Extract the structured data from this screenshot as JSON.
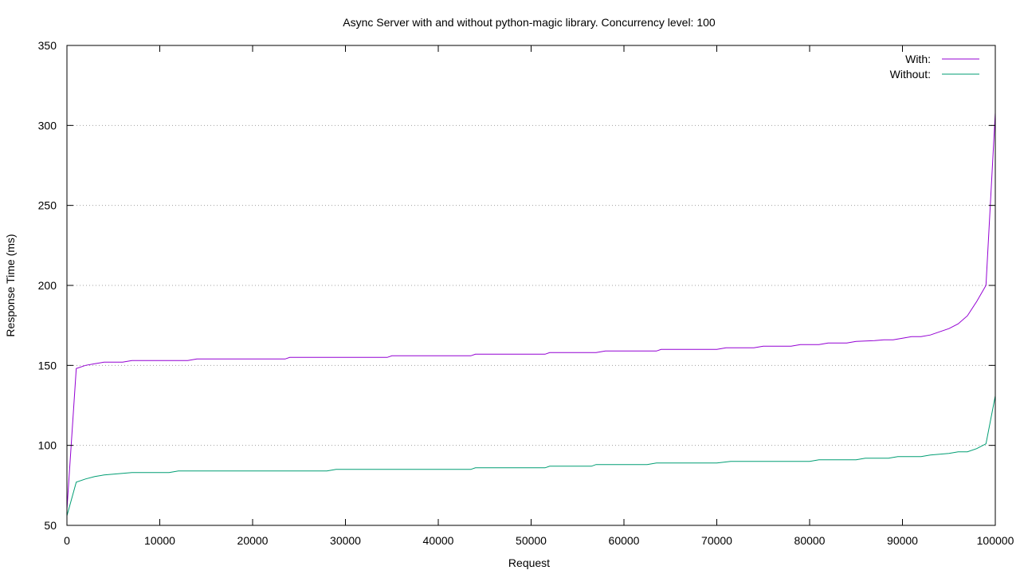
{
  "chart_data": {
    "type": "line",
    "title": "Async Server with and without python-magic library. Concurrency level: 100",
    "xlabel": "Request",
    "ylabel": "Response Time (ms)",
    "xlim": [
      0,
      100000
    ],
    "ylim": [
      50,
      350
    ],
    "xticks": [
      0,
      10000,
      20000,
      30000,
      40000,
      50000,
      60000,
      70000,
      80000,
      90000,
      100000
    ],
    "yticks": [
      50,
      100,
      150,
      200,
      250,
      300,
      350
    ],
    "grid": "horizontal-dotted",
    "legend_position": "top-right",
    "series": [
      {
        "name": "With:",
        "color": "#9400d3",
        "points": [
          [
            0,
            60
          ],
          [
            1000,
            148
          ],
          [
            2000,
            150
          ],
          [
            3000,
            151
          ],
          [
            4000,
            152
          ],
          [
            5000,
            152
          ],
          [
            6000,
            152
          ],
          [
            7000,
            153
          ],
          [
            10000,
            153
          ],
          [
            13000,
            153
          ],
          [
            14000,
            154
          ],
          [
            20000,
            154
          ],
          [
            23500,
            154
          ],
          [
            24000,
            155
          ],
          [
            30000,
            155
          ],
          [
            34500,
            155
          ],
          [
            35000,
            156
          ],
          [
            40000,
            156
          ],
          [
            43500,
            156
          ],
          [
            44000,
            157
          ],
          [
            50000,
            157
          ],
          [
            51500,
            157
          ],
          [
            52000,
            158
          ],
          [
            57000,
            158
          ],
          [
            58000,
            159
          ],
          [
            63500,
            159
          ],
          [
            64000,
            160
          ],
          [
            70000,
            160
          ],
          [
            71000,
            161
          ],
          [
            74000,
            161
          ],
          [
            75000,
            162
          ],
          [
            78000,
            162
          ],
          [
            79000,
            163
          ],
          [
            81000,
            163
          ],
          [
            82000,
            164
          ],
          [
            84000,
            164
          ],
          [
            85000,
            165
          ],
          [
            87000,
            165.5
          ],
          [
            88000,
            166
          ],
          [
            89000,
            166
          ],
          [
            90000,
            167
          ],
          [
            91000,
            168
          ],
          [
            92000,
            168
          ],
          [
            93000,
            169
          ],
          [
            94000,
            171
          ],
          [
            95000,
            173
          ],
          [
            96000,
            176
          ],
          [
            97000,
            181
          ],
          [
            98000,
            190
          ],
          [
            99000,
            200
          ],
          [
            100000,
            308
          ]
        ]
      },
      {
        "name": "Without:",
        "color": "#009e73",
        "points": [
          [
            0,
            56
          ],
          [
            1000,
            77
          ],
          [
            2000,
            79
          ],
          [
            3000,
            80.5
          ],
          [
            4000,
            81.5
          ],
          [
            5000,
            82
          ],
          [
            6000,
            82.5
          ],
          [
            7000,
            83
          ],
          [
            10000,
            83
          ],
          [
            11000,
            83
          ],
          [
            12000,
            84
          ],
          [
            20000,
            84
          ],
          [
            28000,
            84
          ],
          [
            29000,
            85
          ],
          [
            35000,
            85
          ],
          [
            40000,
            85
          ],
          [
            43500,
            85
          ],
          [
            44000,
            86
          ],
          [
            50000,
            86
          ],
          [
            51500,
            86
          ],
          [
            52000,
            87
          ],
          [
            56500,
            87
          ],
          [
            57000,
            88
          ],
          [
            62500,
            88
          ],
          [
            63500,
            89
          ],
          [
            70000,
            89
          ],
          [
            71500,
            90
          ],
          [
            80000,
            90
          ],
          [
            81000,
            91
          ],
          [
            85000,
            91
          ],
          [
            86000,
            92
          ],
          [
            88500,
            92
          ],
          [
            89500,
            93
          ],
          [
            92000,
            93
          ],
          [
            93000,
            94
          ],
          [
            94000,
            94.5
          ],
          [
            95000,
            95
          ],
          [
            96000,
            96
          ],
          [
            97000,
            96
          ],
          [
            98000,
            98
          ],
          [
            99000,
            101
          ],
          [
            100000,
            131
          ]
        ]
      }
    ]
  }
}
